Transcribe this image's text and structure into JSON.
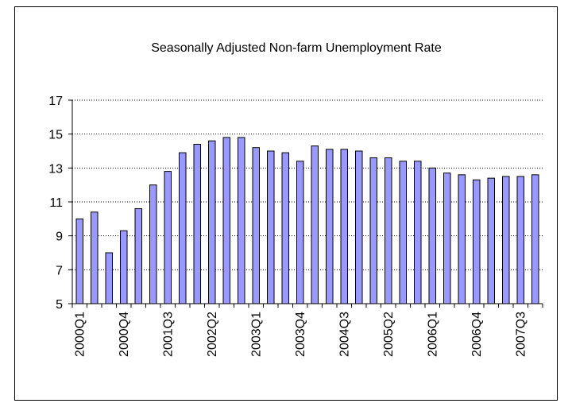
{
  "chart_data": {
    "type": "bar",
    "title": "Seasonally Adjusted Non-farm Unemployment Rate",
    "xlabel": "",
    "ylabel": "",
    "ylim": [
      5,
      17
    ],
    "yticks": [
      5,
      7,
      9,
      11,
      13,
      15,
      17
    ],
    "grid": "horizontal dotted",
    "legend": "none",
    "bar_color": "#9999FF",
    "bar_edge_color": "#000000",
    "categories": [
      "2000Q1",
      "2000Q2",
      "2000Q3",
      "2000Q4",
      "2001Q1",
      "2001Q2",
      "2001Q3",
      "2001Q4",
      "2002Q1",
      "2002Q2",
      "2002Q3",
      "2002Q4",
      "2003Q1",
      "2003Q2",
      "2003Q3",
      "2003Q4",
      "2004Q1",
      "2004Q2",
      "2004Q3",
      "2004Q4",
      "2005Q1",
      "2005Q2",
      "2005Q3",
      "2005Q4",
      "2006Q1",
      "2006Q2",
      "2006Q3",
      "2006Q4",
      "2007Q1",
      "2007Q2",
      "2007Q3",
      "2007Q4"
    ],
    "shown_tick_labels": [
      "2000Q1",
      "2000Q4",
      "2001Q3",
      "2002Q2",
      "2003Q1",
      "2003Q4",
      "2004Q3",
      "2005Q2",
      "2006Q1",
      "2006Q4",
      "2007Q3"
    ],
    "values": [
      10.0,
      10.4,
      8.0,
      9.3,
      10.6,
      12.0,
      12.8,
      13.9,
      14.4,
      14.6,
      14.8,
      14.8,
      14.2,
      14.0,
      13.9,
      13.4,
      14.3,
      14.1,
      14.1,
      14.0,
      13.6,
      13.6,
      13.4,
      13.4,
      13.0,
      12.7,
      12.6,
      12.3,
      12.4,
      12.5,
      12.5,
      12.6
    ]
  }
}
